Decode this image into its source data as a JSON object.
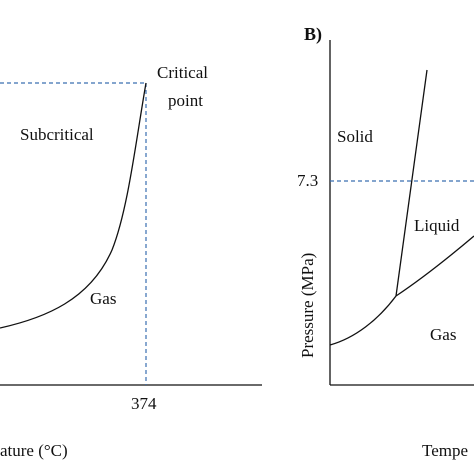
{
  "left_panel": {
    "region_labels": {
      "subcritical": "Subcritical",
      "gas": "Gas",
      "critical_point": [
        "Critical",
        "point"
      ]
    },
    "x_axis_label": "ature (°C)",
    "x_tick_label": "374"
  },
  "right_panel": {
    "panel_label": "B)",
    "y_axis_label": "Pressure (MPa)",
    "y_tick_label": "7.3",
    "region_labels": {
      "solid": "Solid",
      "liquid": "Liquid",
      "gas": "Gas"
    },
    "x_axis_label": "Tempe"
  },
  "colors": {
    "curve": "#111111",
    "dashed_guide": "#3a6fb0",
    "background": "#ffffff"
  }
}
